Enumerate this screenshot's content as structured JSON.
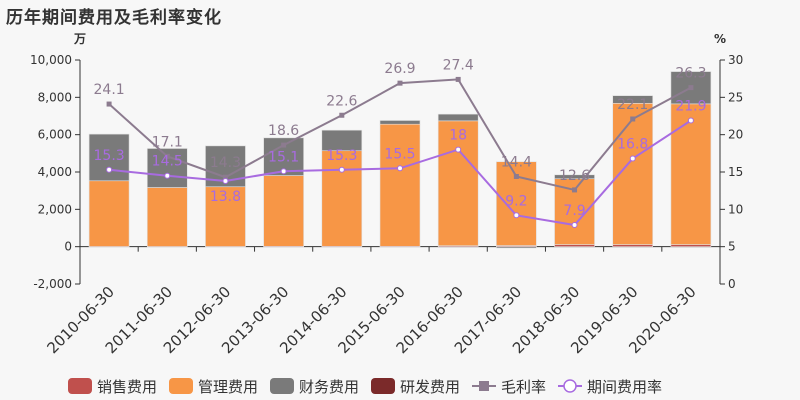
{
  "title": "历年期间费用及毛利率变化",
  "chart_data": {
    "type": "bar",
    "title": "历年期间费用及毛利率变化",
    "left_unit": "万",
    "right_unit": "%",
    "left_ylim": [
      -2000,
      10000
    ],
    "left_ticks": [
      "-2,000",
      "0",
      "2,000",
      "4,000",
      "6,000",
      "8,000",
      "10,000"
    ],
    "right_ylim": [
      0,
      30
    ],
    "right_ticks": [
      "0",
      "5",
      "10",
      "15",
      "20",
      "25",
      "30"
    ],
    "categories": [
      "2010-06-30",
      "2011-06-30",
      "2012-06-30",
      "2013-06-30",
      "2014-06-30",
      "2015-06-30",
      "2016-06-30",
      "2017-06-30",
      "2018-06-30",
      "2019-06-30",
      "2020-06-30"
    ],
    "bar_series": [
      {
        "name": "销售费用",
        "color": "#c0504d",
        "values": [
          10,
          10,
          10,
          20,
          20,
          20,
          50,
          60,
          110,
          110,
          110
        ]
      },
      {
        "name": "管理费用",
        "color": "#f79646",
        "values": [
          3520,
          3160,
          3200,
          3790,
          5120,
          6540,
          6690,
          4490,
          3530,
          7570,
          7540
        ]
      },
      {
        "name": "财务费用",
        "color": "#7a7a7a",
        "values": [
          2500,
          2090,
          2190,
          2020,
          1100,
          200,
          360,
          -70,
          210,
          410,
          1730
        ]
      },
      {
        "name": "研发费用",
        "color": "#7b2a2a",
        "values": [
          0,
          0,
          0,
          0,
          0,
          0,
          0,
          0,
          0,
          0,
          0
        ]
      }
    ],
    "line_series": [
      {
        "name": "毛利率",
        "color": "#8c7b8f",
        "axis": "right",
        "values": [
          24.1,
          17.1,
          14.3,
          18.6,
          22.6,
          26.9,
          27.4,
          14.4,
          12.6,
          22.1,
          26.3
        ]
      },
      {
        "name": "期间费用率",
        "color": "#a86be0",
        "axis": "right",
        "values": [
          15.3,
          14.5,
          13.8,
          15.1,
          15.3,
          15.5,
          18,
          9.2,
          7.9,
          16.8,
          21.9
        ]
      }
    ],
    "legend_position": "bottom",
    "grid": false
  }
}
